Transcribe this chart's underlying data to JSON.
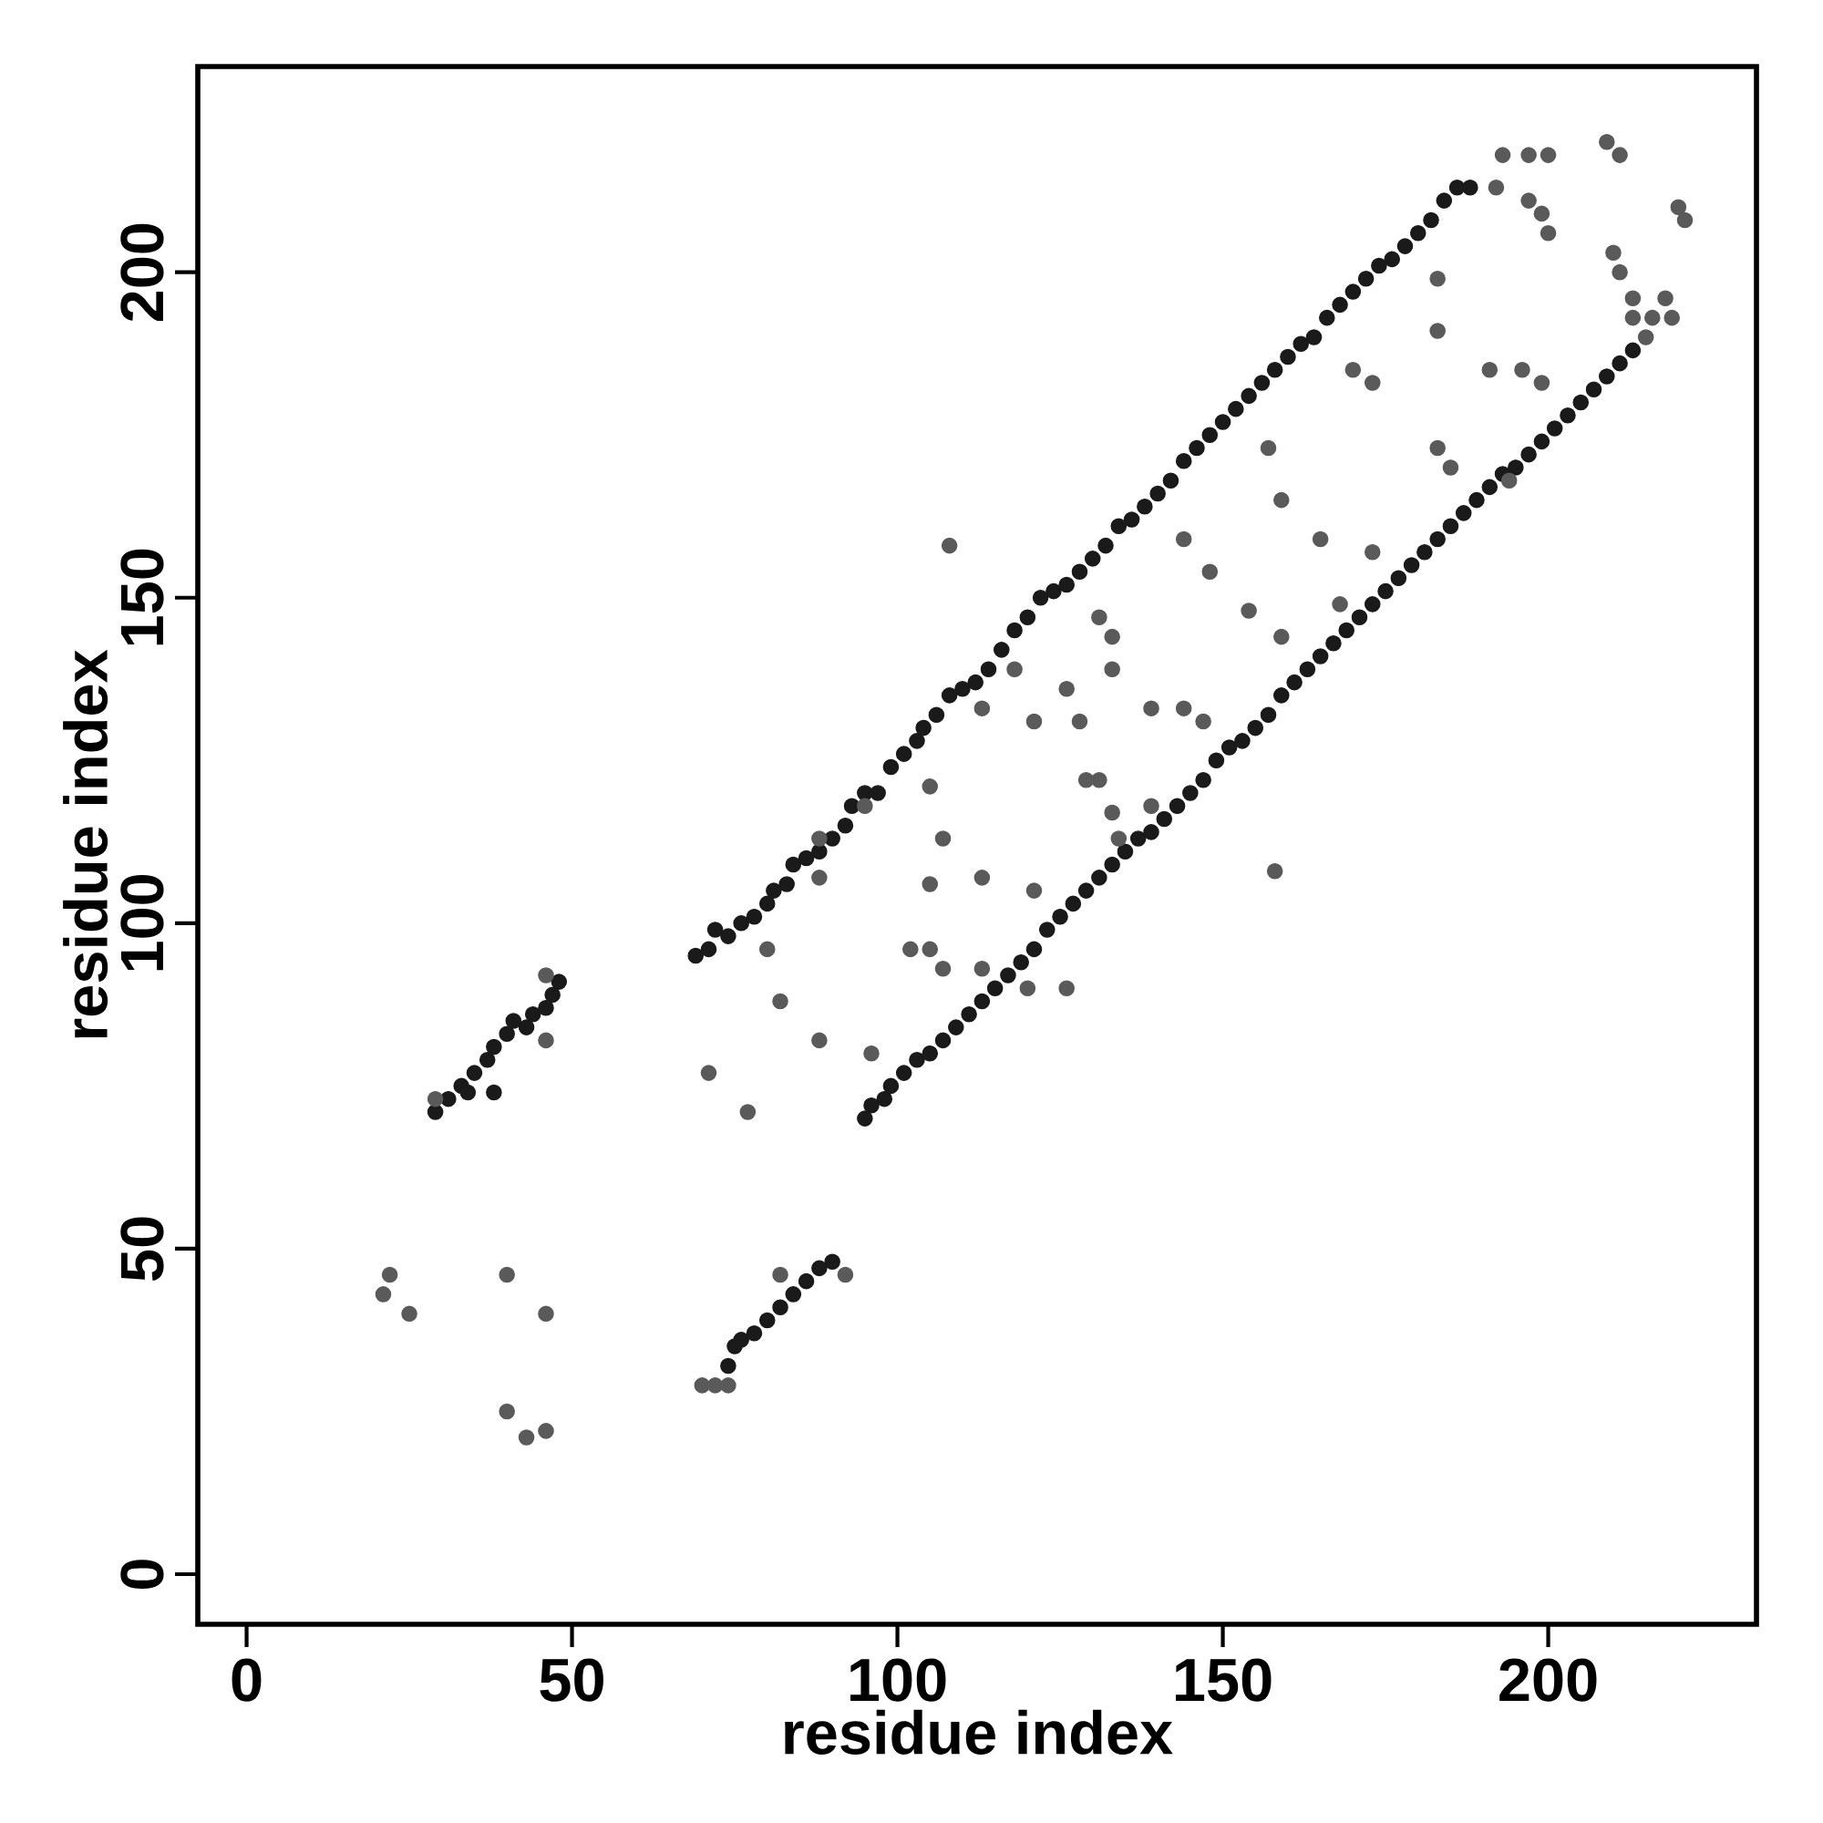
{
  "chart_data": {
    "type": "scatter",
    "xlabel": "residue index",
    "ylabel": "residue index",
    "xlim": [
      -7.5,
      232
    ],
    "ylim": [
      -7.7,
      231.6
    ],
    "xticks": [
      0,
      50,
      100,
      150,
      200
    ],
    "yticks": [
      0,
      50,
      100,
      150,
      200
    ],
    "marker": "circle",
    "series": [
      {
        "color": "#1a1a1a",
        "x": [
          29,
          31,
          33,
          35,
          37,
          38,
          40,
          41,
          43,
          44,
          46,
          47,
          48,
          34,
          38,
          74,
          75,
          76,
          78,
          80,
          82,
          84,
          86,
          88,
          90,
          69,
          71,
          72,
          74,
          76,
          78,
          80,
          81,
          83,
          84,
          86,
          88,
          90,
          92,
          93,
          95,
          97,
          99,
          101,
          103,
          104,
          106,
          108,
          110,
          112,
          114,
          116,
          118,
          120,
          122,
          124,
          126,
          128,
          130,
          132,
          134,
          136,
          138,
          140,
          142,
          144,
          146,
          148,
          150,
          152,
          154,
          156,
          158,
          160,
          162,
          164,
          166,
          168,
          170,
          172,
          174,
          176,
          178,
          180,
          182,
          184,
          186,
          188,
          95,
          96,
          98,
          99,
          101,
          103,
          105,
          107,
          109,
          111,
          113,
          115,
          117,
          119,
          121,
          123,
          125,
          127,
          129,
          131,
          133,
          135,
          137,
          139,
          141,
          143,
          145,
          147,
          149,
          151,
          153,
          155,
          157,
          159,
          161,
          163,
          165,
          167,
          169,
          171,
          173,
          175,
          177,
          179,
          181,
          183,
          185,
          187,
          189,
          191,
          193,
          195,
          197,
          199,
          201,
          203,
          205,
          207,
          209,
          211,
          213
        ],
        "values": [
          71,
          73,
          75,
          77,
          79,
          81,
          83,
          85,
          84,
          86,
          87,
          89,
          91,
          74,
          74,
          32,
          35,
          36,
          37,
          39,
          41,
          43,
          45,
          47,
          48,
          95,
          96,
          99,
          98,
          100,
          101,
          103,
          105,
          106,
          109,
          110,
          111,
          113,
          115,
          118,
          120,
          120,
          124,
          126,
          128,
          130,
          132,
          135,
          136,
          137,
          139,
          142,
          145,
          147,
          150,
          151,
          152,
          154,
          156,
          158,
          161,
          162,
          164,
          166,
          168,
          171,
          173,
          175,
          177,
          179,
          181,
          183,
          185,
          187,
          189,
          190,
          193,
          195,
          197,
          199,
          201,
          202,
          204,
          206,
          208,
          211,
          213,
          213,
          70,
          72,
          73,
          75,
          77,
          79,
          80,
          82,
          84,
          86,
          88,
          90,
          92,
          94,
          96,
          99,
          101,
          103,
          105,
          107,
          109,
          111,
          113,
          114,
          116,
          118,
          120,
          122,
          125,
          127,
          128,
          130,
          132,
          135,
          137,
          139,
          141,
          143,
          145,
          147,
          149,
          151,
          153,
          155,
          157,
          159,
          161,
          163,
          165,
          167,
          169,
          170,
          172,
          174,
          176,
          178,
          180,
          182,
          184,
          186,
          188
        ]
      },
      {
        "color": "#5a5a5a",
        "x": [
          29,
          46,
          46,
          21,
          22,
          25,
          40,
          46,
          40,
          43,
          46,
          70,
          72,
          74,
          92,
          82,
          71,
          77,
          108,
          158,
          82,
          88,
          80,
          96,
          102,
          105,
          107,
          105,
          113,
          107,
          105,
          121,
          129,
          131,
          133,
          133,
          131,
          139,
          144,
          147,
          154,
          148,
          144,
          159,
          165,
          159,
          157,
          170,
          173,
          183,
          183,
          191,
          196,
          199,
          194,
          185,
          183,
          173,
          168,
          133,
          134,
          139,
          126,
          128,
          121,
          118,
          113,
          120,
          126,
          113,
          95,
          88,
          88,
          193,
          197,
          200,
          209,
          211,
          199,
          200,
          210,
          211,
          213,
          218,
          219,
          220,
          221,
          215,
          192,
          197,
          213,
          216
        ],
        "values": [
          73,
          92,
          82,
          43,
          46,
          40,
          46,
          40,
          25,
          21,
          22,
          29,
          29,
          29,
          46,
          46,
          77,
          71,
          158,
          108,
          88,
          82,
          96,
          80,
          96,
          96,
          93,
          106,
          107,
          113,
          121,
          105,
          122,
          122,
          139,
          144,
          147,
          133,
          133,
          131,
          148,
          154,
          159,
          165,
          159,
          144,
          173,
          185,
          183,
          191,
          199,
          185,
          185,
          183,
          168,
          170,
          173,
          157,
          149,
          117,
          113,
          118,
          136,
          131,
          131,
          139,
          133,
          90,
          90,
          93,
          118,
          113,
          107,
          218,
          218,
          218,
          220,
          218,
          209,
          206,
          203,
          200,
          196,
          196,
          193,
          210,
          208,
          190,
          213,
          211,
          193,
          193
        ]
      }
    ]
  }
}
